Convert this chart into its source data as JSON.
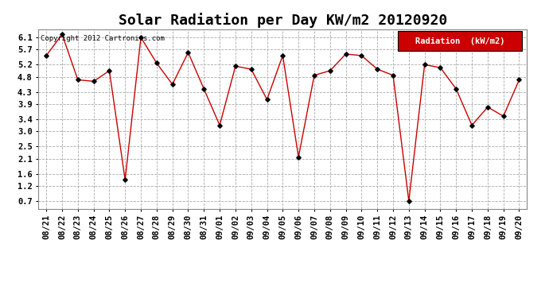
{
  "title": "Solar Radiation per Day KW/m2 20120920",
  "copyright_text": "Copyright 2012 Cartronics.com",
  "legend_label": "Radiation  (kW/m2)",
  "background_color": "#ffffff",
  "plot_bg_color": "#ffffff",
  "line_color": "#cc0000",
  "marker_color": "#000000",
  "legend_bg": "#cc0000",
  "legend_text_color": "#ffffff",
  "dates": [
    "08/21",
    "08/22",
    "08/23",
    "08/24",
    "08/25",
    "08/26",
    "08/27",
    "08/28",
    "08/29",
    "08/30",
    "08/31",
    "09/01",
    "09/02",
    "09/03",
    "09/04",
    "09/05",
    "09/06",
    "09/07",
    "09/08",
    "09/09",
    "09/10",
    "09/11",
    "09/12",
    "09/13",
    "09/14",
    "09/15",
    "09/16",
    "09/17",
    "09/18",
    "09/19",
    "09/20"
  ],
  "values": [
    5.5,
    6.2,
    4.7,
    4.65,
    5.0,
    1.4,
    6.1,
    5.25,
    4.55,
    5.6,
    4.4,
    3.2,
    5.15,
    5.05,
    4.05,
    5.5,
    2.15,
    4.85,
    5.0,
    5.55,
    5.5,
    5.05,
    4.85,
    0.7,
    5.2,
    5.1,
    4.4,
    3.2,
    3.8,
    3.5,
    4.7
  ],
  "yticks": [
    0.7,
    1.2,
    1.6,
    2.1,
    2.5,
    3.0,
    3.4,
    3.9,
    4.3,
    4.8,
    5.2,
    5.7,
    6.1
  ],
  "ylim": [
    0.45,
    6.35
  ],
  "grid_color": "#aaaaaa",
  "title_fontsize": 13,
  "tick_fontsize": 7.5,
  "copyright_fontsize": 6.5,
  "legend_fontsize": 7.5
}
